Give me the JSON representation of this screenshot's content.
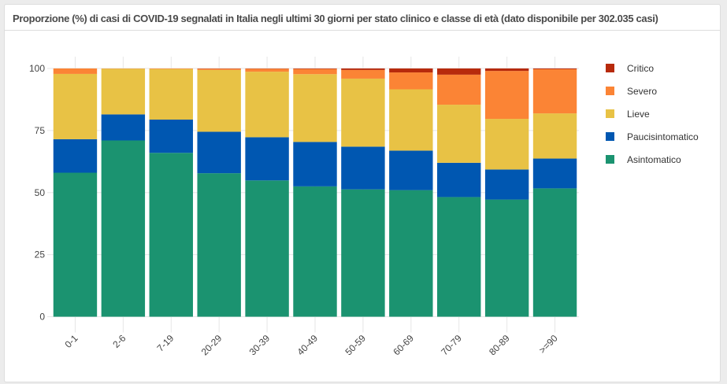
{
  "panel": {
    "title": "Proporzione (%) di casi di COVID-19 segnalati in Italia negli ultimi 30 giorni per stato clinico e classe di età (dato disponibile per 302.035 casi)"
  },
  "chart_data": {
    "type": "bar",
    "stacked": true,
    "title": "Proporzione (%) di casi di COVID-19 segnalati in Italia negli ultimi 30 giorni per stato clinico e classe di età (dato disponibile per 302.035 casi)",
    "xlabel": "",
    "ylabel": "",
    "ylim": [
      0,
      100
    ],
    "yticks": [
      0,
      25,
      50,
      75,
      100
    ],
    "grid": true,
    "legend_position": "right",
    "categories": [
      "0-1",
      "2-6",
      "7-19",
      "20-29",
      "30-39",
      "40-49",
      "50-59",
      "60-69",
      "70-79",
      "80-89",
      ">=90"
    ],
    "series": [
      {
        "name": "Asintomatico",
        "color": "#1b9370",
        "values": [
          58.0,
          71.0,
          66.0,
          57.8,
          54.9,
          52.5,
          51.3,
          51.0,
          48.2,
          47.2,
          51.7
        ]
      },
      {
        "name": "Paucisintomatico",
        "color": "#0057b1",
        "values": [
          13.5,
          10.5,
          13.4,
          16.7,
          17.4,
          17.9,
          17.2,
          15.9,
          13.8,
          12.1,
          12.0
        ]
      },
      {
        "name": "Lieve",
        "color": "#e8c245",
        "values": [
          26.3,
          18.4,
          20.4,
          24.9,
          26.4,
          27.3,
          27.4,
          24.7,
          23.4,
          20.4,
          18.2
        ]
      },
      {
        "name": "Severo",
        "color": "#fb8435",
        "values": [
          2.2,
          0.1,
          0.2,
          0.5,
          1.2,
          2.1,
          3.5,
          6.8,
          12.1,
          19.3,
          17.8
        ]
      },
      {
        "name": "Critico",
        "color": "#b72a0c",
        "values": [
          0.0,
          0.0,
          0.0,
          0.1,
          0.1,
          0.2,
          0.6,
          1.6,
          2.5,
          1.0,
          0.3
        ]
      }
    ],
    "legend_order": [
      "Critico",
      "Severo",
      "Lieve",
      "Paucisintomatico",
      "Asintomatico"
    ]
  }
}
